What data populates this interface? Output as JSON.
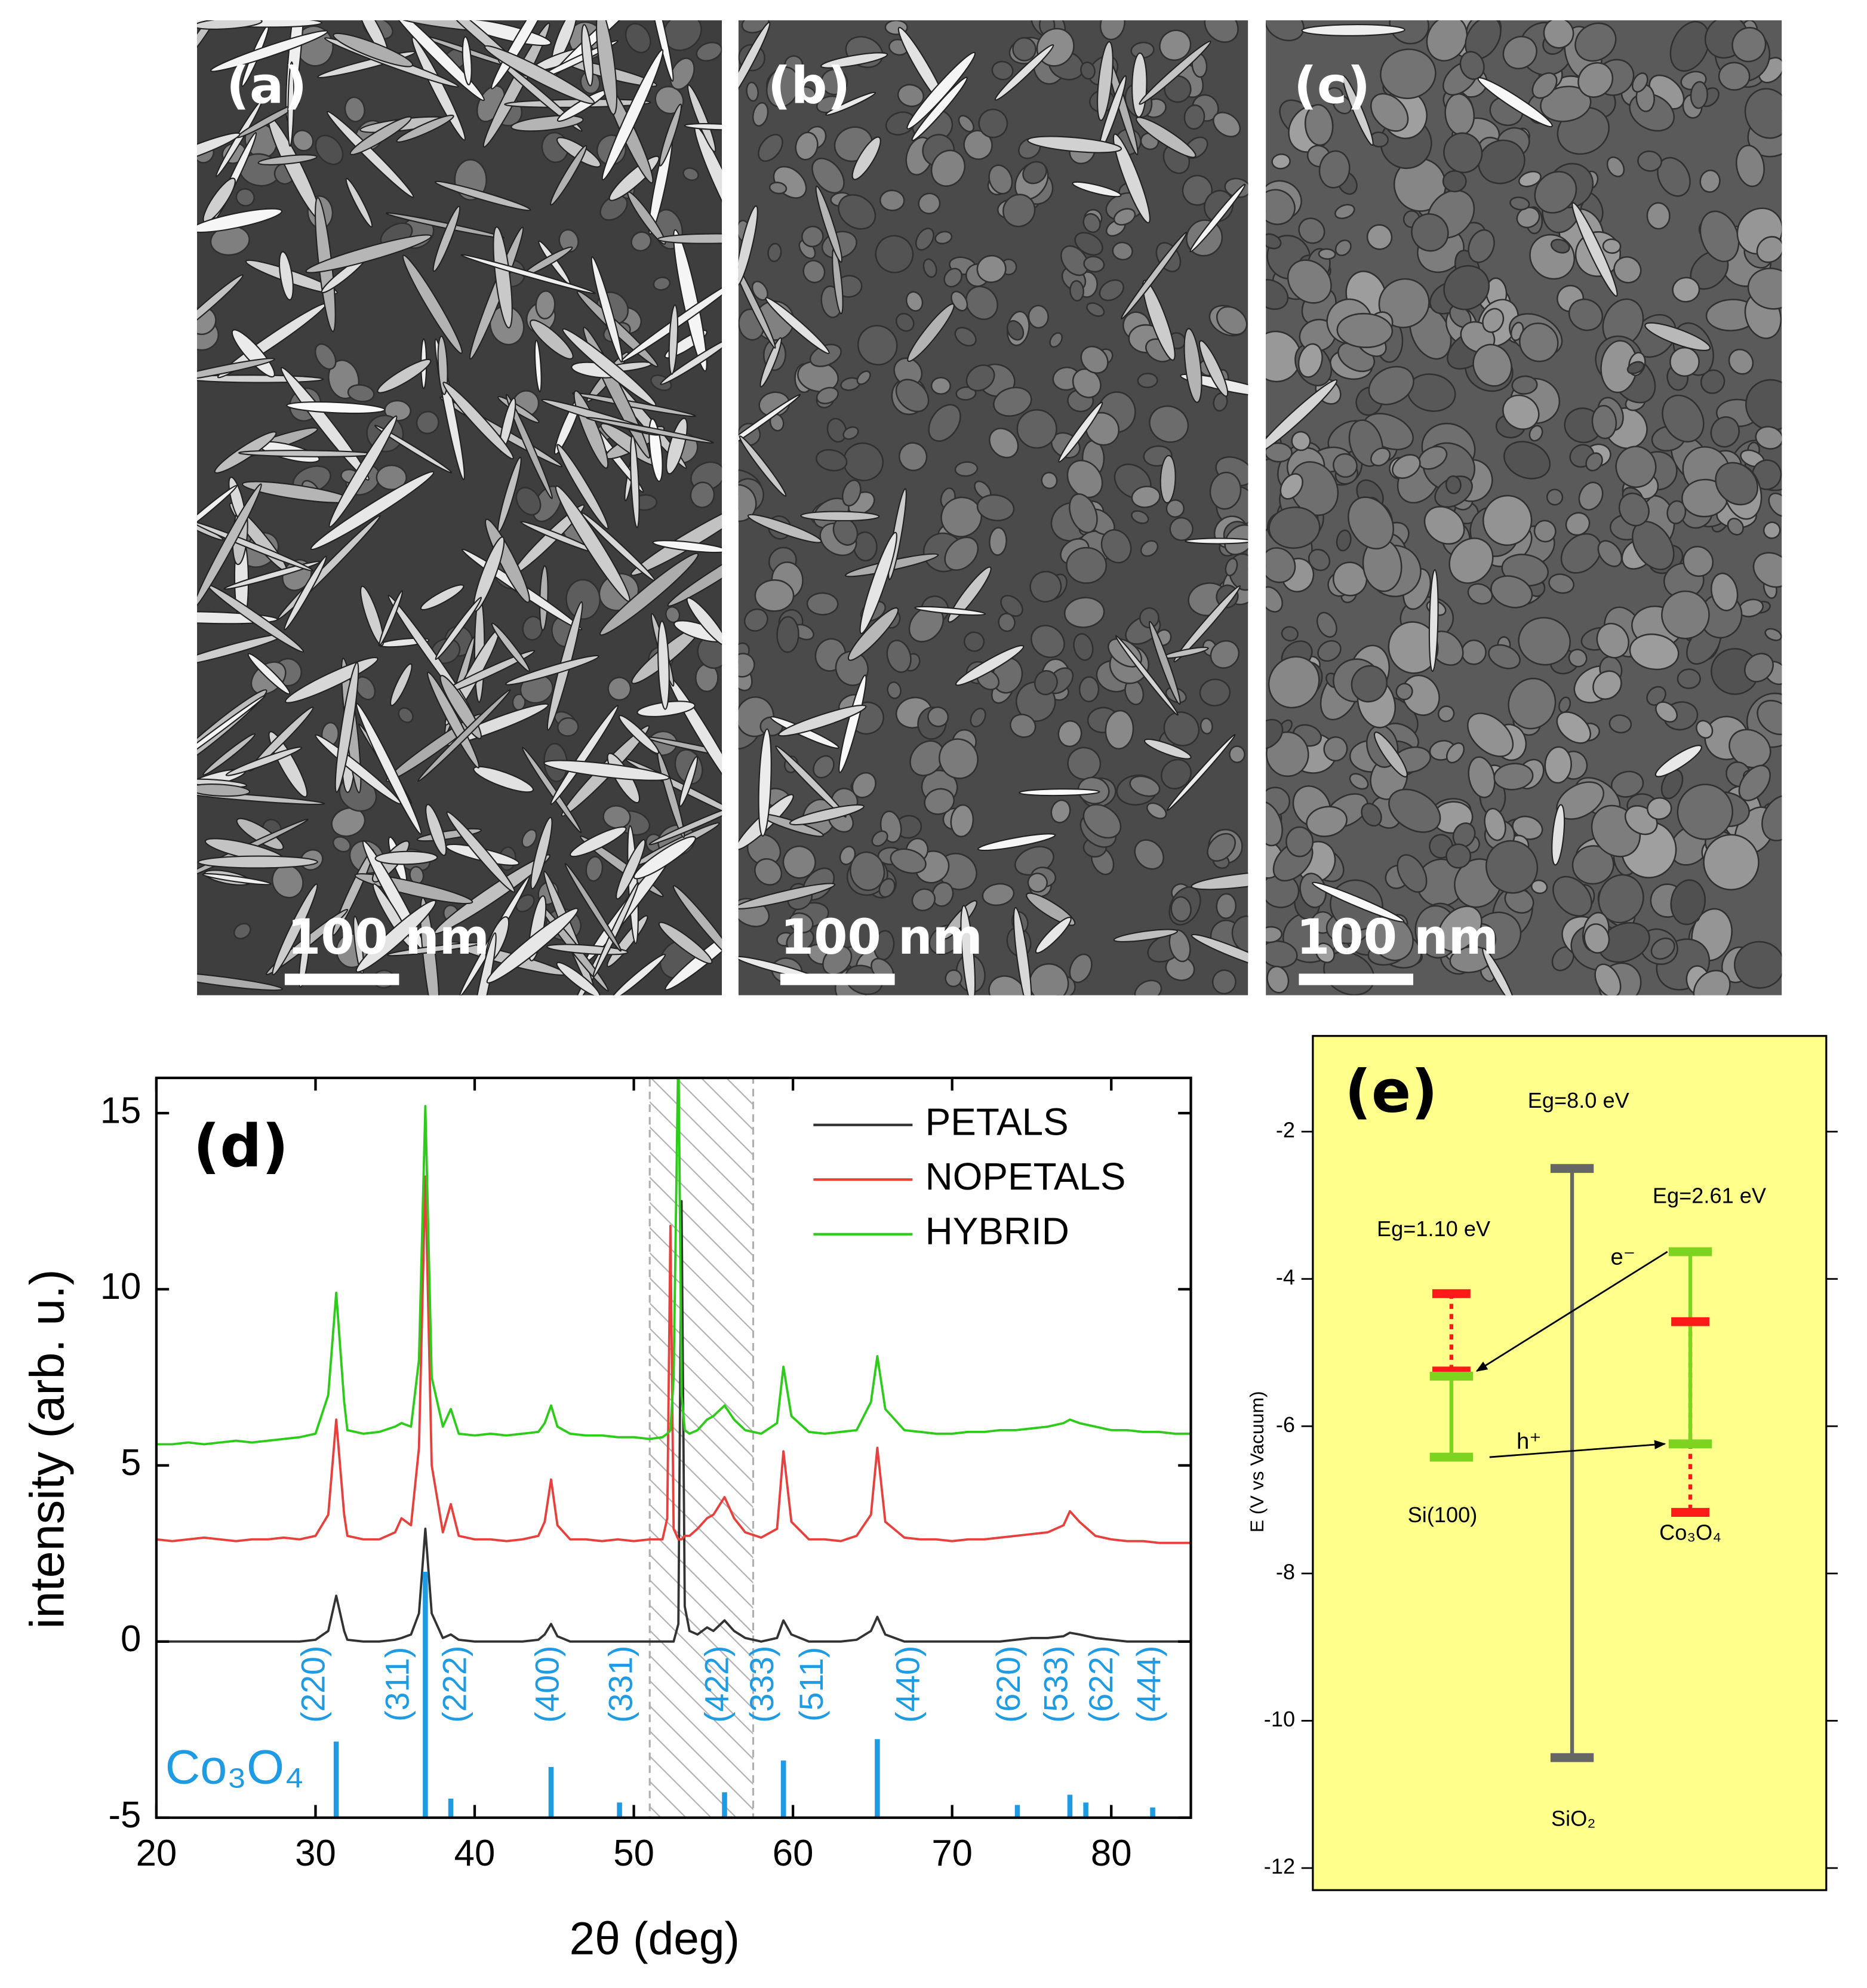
{
  "images": [
    {
      "label": "(a)",
      "scale_bar": "100 nm"
    },
    {
      "label": "(b)",
      "scale_bar": "100 nm"
    },
    {
      "label": "(c)",
      "scale_bar": "100 nm"
    }
  ],
  "chart_data": [
    {
      "type": "line",
      "annotation": "(d)",
      "xlabel": "2θ (deg)",
      "ylabel": "intensity (arb. u.)",
      "xlim": [
        20,
        85
      ],
      "ylim": [
        -5,
        16
      ],
      "xticks": [
        20,
        30,
        40,
        50,
        60,
        70,
        80
      ],
      "yticks": [
        -5,
        0,
        5,
        10,
        15
      ],
      "legend": "upper right",
      "shaded_xlim": [
        51,
        57.5
      ],
      "shaded_color": "#b0b0b0",
      "x": [
        20,
        21,
        22,
        23,
        24,
        25,
        26,
        27,
        28,
        29,
        30,
        30.8,
        31.3,
        31.8,
        32,
        33,
        34,
        35,
        35.4,
        36,
        36.5,
        36.9,
        37.3,
        38,
        38.5,
        39,
        40,
        41,
        42,
        43,
        44,
        44.4,
        44.8,
        45.2,
        46,
        47,
        48,
        49,
        50,
        51,
        51.8,
        52.1,
        52.3,
        52.5,
        52.8,
        53.0,
        53.2,
        53.5,
        54,
        54.6,
        55,
        55.7,
        56.3,
        57,
        58,
        59,
        59.4,
        59.9,
        61,
        62,
        63,
        64,
        64.9,
        65.3,
        65.8,
        67,
        68,
        69,
        70,
        71,
        72,
        73,
        74,
        75,
        76,
        77,
        77.4,
        78,
        79,
        80,
        81,
        82,
        83,
        84,
        85
      ],
      "series": [
        {
          "name": "PETALS",
          "color": "#333333",
          "values": [
            0,
            0,
            0,
            0,
            0,
            0,
            0,
            0,
            0,
            0,
            0.05,
            0.3,
            1.3,
            0.3,
            0.05,
            0,
            0,
            0.05,
            0.1,
            0.2,
            0.8,
            3.2,
            0.8,
            0.1,
            0.2,
            0.05,
            0,
            0,
            0,
            0,
            0.05,
            0.2,
            0.5,
            0.15,
            0,
            0,
            0,
            0,
            0,
            0,
            0,
            0,
            0,
            0,
            0.5,
            12.5,
            1.0,
            0.3,
            0.2,
            0.4,
            0.3,
            0.6,
            0.3,
            0.1,
            0,
            0.1,
            0.6,
            0.2,
            0,
            0,
            0,
            0.05,
            0.3,
            0.7,
            0.2,
            0,
            0,
            0,
            0,
            0,
            0,
            0,
            0.05,
            0.1,
            0.1,
            0.15,
            0.25,
            0.2,
            0.1,
            0.05,
            0,
            0,
            0,
            0,
            0
          ]
        },
        {
          "name": "NOPETALS",
          "color": "#e8403c",
          "values": [
            2.9,
            2.85,
            2.9,
            2.95,
            2.9,
            2.85,
            2.9,
            2.9,
            2.95,
            2.9,
            3.0,
            3.6,
            6.3,
            3.6,
            3.0,
            2.9,
            2.9,
            3.1,
            3.5,
            3.3,
            5.5,
            13.2,
            5.0,
            3.1,
            3.9,
            3.0,
            2.9,
            2.9,
            2.85,
            2.9,
            3.0,
            3.4,
            4.6,
            3.3,
            2.9,
            2.9,
            2.85,
            2.9,
            2.85,
            2.9,
            2.9,
            3.5,
            11.8,
            3.2,
            2.9,
            2.9,
            3.0,
            3.0,
            3.2,
            3.5,
            3.6,
            4.1,
            3.5,
            3.1,
            2.95,
            3.2,
            5.4,
            3.4,
            2.9,
            2.9,
            2.85,
            3.0,
            3.6,
            5.5,
            3.4,
            2.95,
            2.9,
            2.9,
            2.85,
            2.9,
            2.9,
            2.95,
            3.0,
            3.05,
            3.1,
            3.3,
            3.7,
            3.4,
            3.0,
            2.9,
            2.85,
            2.85,
            2.8,
            2.8,
            2.8
          ]
        },
        {
          "name": "HYBRID",
          "color": "#2ecc1a",
          "values": [
            5.6,
            5.6,
            5.65,
            5.6,
            5.65,
            5.7,
            5.65,
            5.7,
            5.75,
            5.8,
            5.9,
            7.0,
            9.9,
            6.8,
            6.0,
            5.9,
            5.95,
            6.1,
            6.2,
            6.1,
            8.0,
            15.2,
            7.5,
            6.1,
            6.6,
            5.9,
            5.85,
            5.9,
            5.85,
            5.9,
            5.95,
            6.2,
            6.7,
            6.1,
            5.9,
            5.85,
            5.85,
            5.8,
            5.8,
            5.75,
            5.8,
            5.9,
            6.0,
            7.5,
            17,
            7.0,
            6.0,
            5.9,
            6.0,
            6.3,
            6.4,
            6.7,
            6.3,
            6.0,
            5.9,
            6.2,
            7.8,
            6.4,
            5.95,
            5.9,
            5.95,
            6.0,
            6.8,
            8.1,
            6.6,
            6.0,
            5.95,
            5.9,
            5.9,
            5.95,
            5.95,
            6.0,
            6.0,
            6.05,
            6.1,
            6.2,
            6.3,
            6.2,
            6.1,
            6.0,
            6.0,
            5.95,
            5.95,
            5.9,
            5.9
          ]
        }
      ],
      "reference": {
        "name": "Co₃O₄",
        "color": "#1e9be3",
        "x": [
          31.3,
          36.9,
          38.5,
          44.8,
          49.1,
          55.7,
          59.4,
          59.4,
          65.3,
          74.1,
          77.4,
          78.4,
          82.6
        ],
        "values": [
          -2.84,
          1.98,
          -4.46,
          -3.56,
          -4.57,
          -4.28,
          -3.38,
          -3.38,
          -2.77,
          -4.64,
          -4.35,
          -4.57,
          -4.71
        ],
        "labels": [
          "(220)",
          "(311)",
          "(222)",
          "(400)",
          "(331)",
          "(422)",
          "(333)",
          "(511)",
          "(440)",
          "(620)",
          "(533)",
          "(622)",
          "(444)"
        ]
      }
    },
    {
      "type": "energy_levels",
      "annotation": "(e)",
      "ylabel": "E (V vs Vacuum)",
      "ylim": [
        -12.3,
        -0.7
      ],
      "yticks": [
        -2,
        -4,
        -6,
        -8,
        -10,
        -12
      ],
      "background": "#ffff8c",
      "colors": {
        "green": "#7ed321",
        "red": "#ff1a1a",
        "gray": "#666666"
      },
      "materials": [
        {
          "name": "Si(100)",
          "gap_label": "Eg=1.10 eV",
          "red": [
            -4.2,
            -5.25
          ],
          "green": [
            -5.32,
            -6.42
          ]
        },
        {
          "name": "SiO₂",
          "gap_label": "Eg=8.0 eV",
          "gray": [
            -2.5,
            -10.5
          ]
        },
        {
          "name": "Co₃O₄",
          "gap_label": "Eg=2.61 eV",
          "red": [
            -4.58,
            -7.17
          ],
          "green": [
            -3.63,
            -6.24
          ]
        }
      ],
      "arrows": [
        {
          "label": "e⁻",
          "y": [
            -3.63,
            -5.25
          ]
        },
        {
          "label": "h⁺",
          "y": [
            -6.42,
            -6.24
          ]
        }
      ]
    }
  ]
}
